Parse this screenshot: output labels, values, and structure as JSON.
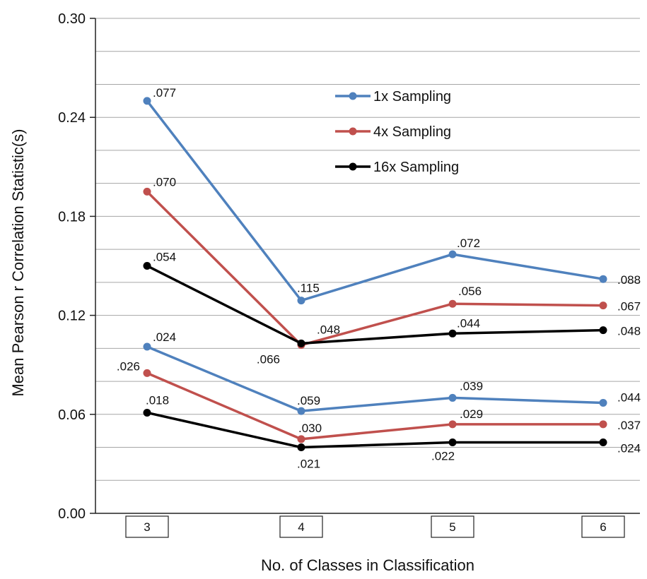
{
  "chart_data": {
    "type": "line",
    "title": "",
    "xlabel": "No. of Classes in Classification",
    "ylabel": "Mean Pearson r Correlation Statistic(s)",
    "ylim": [
      0,
      0.3
    ],
    "yticks": [
      "0.00",
      "0.06",
      "0.12",
      "0.18",
      "0.24",
      "0.30"
    ],
    "minor_grid_step": 0.02,
    "grid": true,
    "legend_position": "top-center",
    "categories": [
      "3",
      "4",
      "5",
      "6"
    ],
    "series": [
      {
        "name": "1x Sampling",
        "color": "#4f81bd",
        "values": [
          0.25,
          0.129,
          0.157,
          0.142
        ],
        "labels": [
          ".077",
          ".115",
          ".072",
          ".088"
        ],
        "in_legend": true
      },
      {
        "name": "4x Sampling",
        "color": "#c0504d",
        "values": [
          0.195,
          0.102,
          0.127,
          0.126
        ],
        "labels": [
          ".070",
          ".066",
          ".056",
          ".067"
        ],
        "in_legend": true
      },
      {
        "name": "16x Sampling",
        "color": "#000000",
        "values": [
          0.15,
          0.103,
          0.109,
          0.111
        ],
        "labels": [
          ".054",
          ".048",
          ".044",
          ".048"
        ],
        "in_legend": true
      },
      {
        "name": "",
        "color": "#4f81bd",
        "values": [
          0.101,
          0.062,
          0.07,
          0.067
        ],
        "labels": [
          ".024",
          ".059",
          ".039",
          ".044"
        ],
        "in_legend": false
      },
      {
        "name": "",
        "color": "#c0504d",
        "values": [
          0.085,
          0.045,
          0.054,
          0.054
        ],
        "labels": [
          ".026",
          ".030",
          ".029",
          ".037"
        ],
        "in_legend": false
      },
      {
        "name": "",
        "color": "#000000",
        "values": [
          0.061,
          0.04,
          0.043,
          0.043
        ],
        "labels": [
          ".018",
          ".021",
          ".022",
          ".024"
        ],
        "in_legend": false
      }
    ]
  }
}
